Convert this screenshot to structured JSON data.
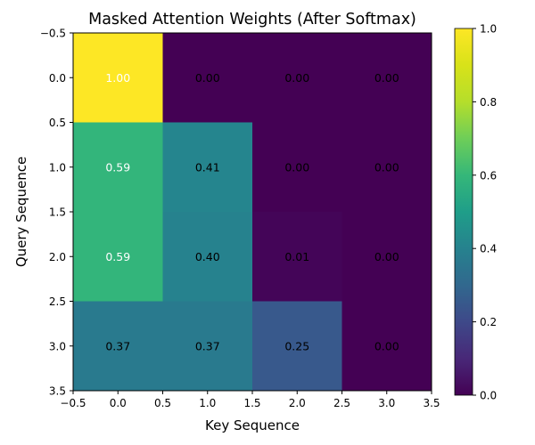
{
  "chart_data": {
    "type": "heatmap",
    "title": "Masked Attention Weights (After Softmax)",
    "xlabel": "Key Sequence",
    "ylabel": "Query Sequence",
    "xlim": [
      -0.5,
      3.5
    ],
    "ylim": [
      3.5,
      -0.5
    ],
    "xticks": [
      "-0.5",
      "0.0",
      "0.5",
      "1.0",
      "1.5",
      "2.0",
      "2.5",
      "3.0",
      "3.5"
    ],
    "yticks": [
      "-0.5",
      "0.0",
      "0.5",
      "1.0",
      "1.5",
      "2.0",
      "2.5",
      "3.0",
      "3.5"
    ],
    "values": [
      [
        1.0,
        0.0,
        0.0,
        0.0
      ],
      [
        0.59,
        0.41,
        0.0,
        0.0
      ],
      [
        0.59,
        0.4,
        0.01,
        0.0
      ],
      [
        0.37,
        0.37,
        0.25,
        0.0
      ]
    ],
    "cell_labels": [
      [
        "1.00",
        "0.00",
        "0.00",
        "0.00"
      ],
      [
        "0.59",
        "0.41",
        "0.00",
        "0.00"
      ],
      [
        "0.59",
        "0.40",
        "0.01",
        "0.00"
      ],
      [
        "0.37",
        "0.37",
        "0.25",
        "0.00"
      ]
    ],
    "colormap": "viridis",
    "colorbar": {
      "range": [
        0.0,
        1.0
      ],
      "ticks": [
        "0.0",
        "0.2",
        "0.4",
        "0.6",
        "0.8",
        "1.0"
      ]
    },
    "label_colors": {
      "dark_cell": "#ffffff",
      "light_cell": "#000000"
    }
  }
}
